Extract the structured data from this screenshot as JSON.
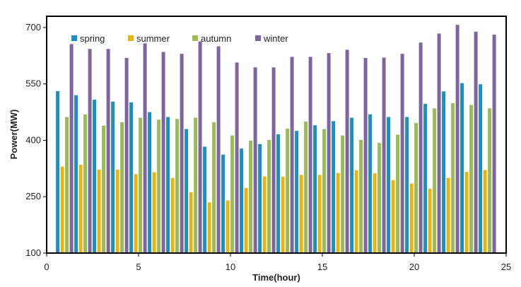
{
  "chart_data": {
    "type": "bar",
    "xlabel": "Time(hour)",
    "ylabel": "Power(MW)",
    "xlim": [
      0,
      25
    ],
    "ylim": [
      100,
      730
    ],
    "x_ticks": [
      0,
      5,
      10,
      15,
      20,
      25
    ],
    "y_ticks": [
      100,
      250,
      400,
      550,
      700
    ],
    "grid": false,
    "legend_position": "top-left",
    "categories": [
      1,
      2,
      3,
      4,
      5,
      6,
      7,
      8,
      9,
      10,
      11,
      12,
      13,
      14,
      15,
      16,
      17,
      18,
      19,
      20,
      21,
      22,
      23,
      24
    ],
    "series": [
      {
        "name": "spring",
        "color": "#1a8fc6",
        "values": [
          531,
          520,
          508,
          503,
          501,
          475,
          462,
          430,
          383,
          362,
          378,
          390,
          416,
          425,
          440,
          451,
          460,
          469,
          462,
          462,
          497,
          530,
          552,
          549
        ]
      },
      {
        "name": "summer",
        "color": "#e8b50f",
        "values": [
          330,
          335,
          322,
          322,
          310,
          315,
          300,
          262,
          235,
          240,
          273,
          304,
          303,
          308,
          308,
          313,
          320,
          312,
          294,
          285,
          271,
          300,
          316,
          321
        ]
      },
      {
        "name": "autumn",
        "color": "#9bbb59",
        "values": [
          462,
          469,
          439,
          448,
          460,
          455,
          457,
          460,
          448,
          413,
          399,
          401,
          431,
          450,
          430,
          413,
          401,
          393,
          415,
          446,
          485,
          499,
          494,
          485
        ]
      },
      {
        "name": "winter",
        "color": "#8064a2",
        "values": [
          656,
          643,
          643,
          619,
          658,
          635,
          630,
          663,
          650,
          607,
          594,
          594,
          622,
          622,
          632,
          641,
          619,
          620,
          630,
          660,
          684,
          707,
          689,
          681
        ]
      }
    ]
  }
}
